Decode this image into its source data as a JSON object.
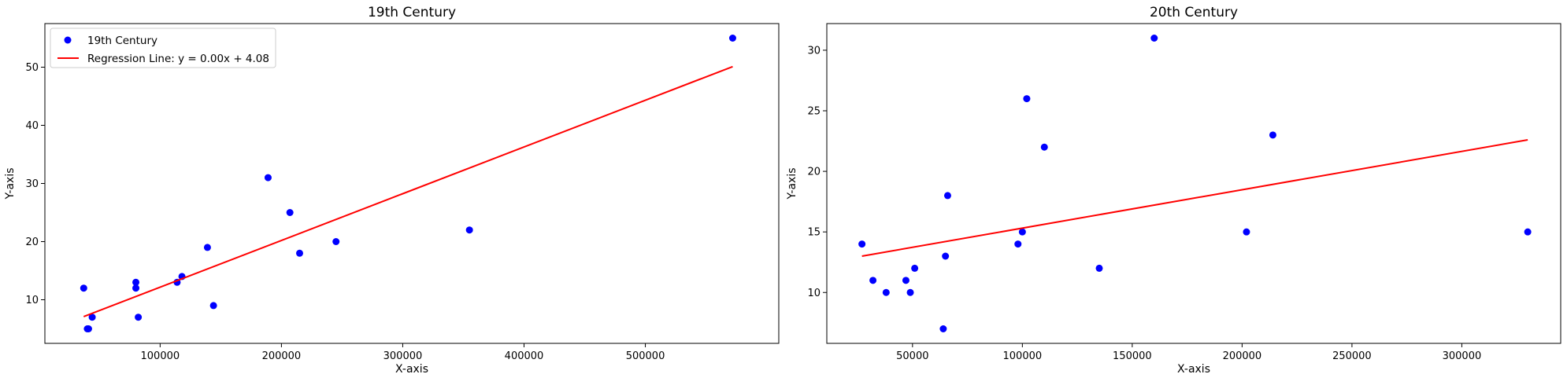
{
  "chart_data": [
    {
      "type": "scatter",
      "title": "19th Century",
      "xlabel": "X-axis",
      "ylabel": "Y-axis",
      "xlim": [
        5000,
        610000
      ],
      "ylim": [
        2.5,
        57.5
      ],
      "xticks": [
        100000,
        200000,
        300000,
        400000,
        500000
      ],
      "yticks": [
        10,
        20,
        30,
        40,
        50
      ],
      "grid": false,
      "legend": "upper-left",
      "series": [
        {
          "name": "19th Century",
          "kind": "scatter",
          "color": "#0000ff",
          "points": [
            [
              37000,
              12
            ],
            [
              40000,
              5
            ],
            [
              41000,
              5
            ],
            [
              44000,
              7
            ],
            [
              80000,
              13
            ],
            [
              80000,
              12
            ],
            [
              82000,
              7
            ],
            [
              114000,
              13
            ],
            [
              118000,
              14
            ],
            [
              139000,
              19
            ],
            [
              144000,
              9
            ],
            [
              189000,
              31
            ],
            [
              207000,
              25
            ],
            [
              215000,
              18
            ],
            [
              245000,
              20
            ],
            [
              355000,
              22
            ],
            [
              572000,
              55
            ]
          ]
        },
        {
          "name": "Regression Line: y = 0.00x + 4.08",
          "kind": "line",
          "color": "#ff0000",
          "points": [
            [
              37000,
              7.1
            ],
            [
              572000,
              50.1
            ]
          ]
        }
      ]
    },
    {
      "type": "scatter",
      "title": "20th Century",
      "xlabel": "X-axis",
      "ylabel": "Y-axis",
      "xlim": [
        11000,
        345000
      ],
      "ylim": [
        5.8,
        32.2
      ],
      "xticks": [
        50000,
        100000,
        150000,
        200000,
        250000,
        300000
      ],
      "yticks": [
        10,
        15,
        20,
        25,
        30
      ],
      "grid": false,
      "legend": "none",
      "series": [
        {
          "kind": "scatter",
          "color": "#0000ff",
          "points": [
            [
              27000,
              14
            ],
            [
              32000,
              11
            ],
            [
              38000,
              10
            ],
            [
              47000,
              11
            ],
            [
              49000,
              10
            ],
            [
              51000,
              12
            ],
            [
              64000,
              7
            ],
            [
              65000,
              13
            ],
            [
              66000,
              18
            ],
            [
              98000,
              14
            ],
            [
              100000,
              15
            ],
            [
              102000,
              26
            ],
            [
              110000,
              22
            ],
            [
              135000,
              12
            ],
            [
              160000,
              31
            ],
            [
              202000,
              15
            ],
            [
              214000,
              23
            ],
            [
              330000,
              15
            ]
          ]
        },
        {
          "kind": "line",
          "color": "#ff0000",
          "points": [
            [
              27000,
              13.0
            ],
            [
              330000,
              22.6
            ]
          ]
        }
      ]
    }
  ]
}
